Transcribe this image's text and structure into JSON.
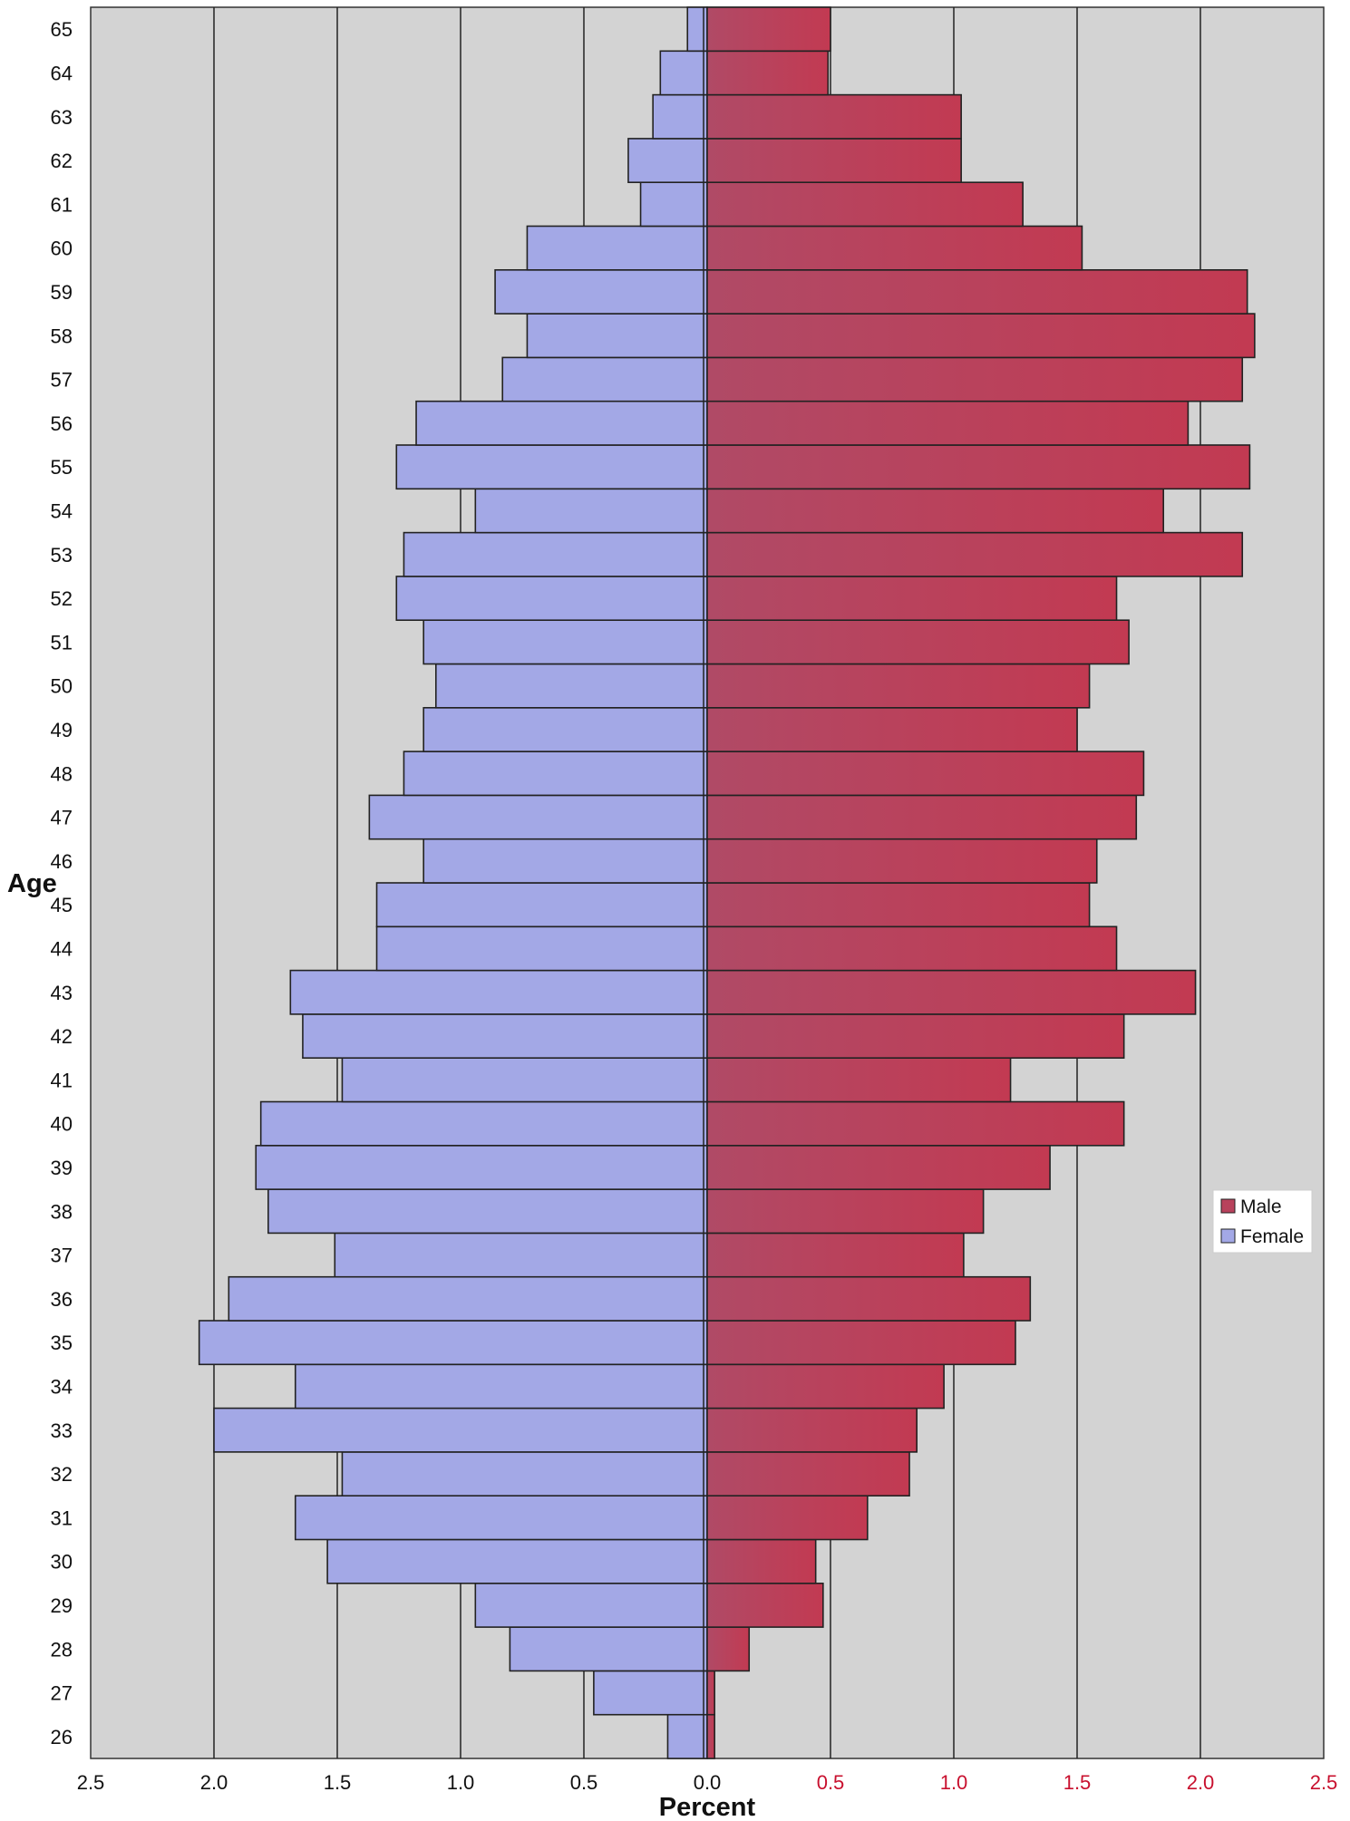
{
  "chart_data": {
    "type": "bar",
    "orientation": "horizontal-population-pyramid",
    "title": "",
    "xlabel": "Percent",
    "ylabel": "Age",
    "xlim": [
      -2.5,
      2.5
    ],
    "x_ticks": [
      "2.5",
      "2.0",
      "1.5",
      "1.0",
      "0.5",
      "0.0",
      "0.5",
      "1.0",
      "1.5",
      "2.0",
      "2.5"
    ],
    "categories": [
      "26",
      "27",
      "28",
      "29",
      "30",
      "31",
      "32",
      "33",
      "34",
      "35",
      "36",
      "37",
      "38",
      "39",
      "40",
      "41",
      "42",
      "43",
      "44",
      "45",
      "46",
      "47",
      "48",
      "49",
      "50",
      "51",
      "52",
      "53",
      "54",
      "55",
      "56",
      "57",
      "58",
      "59",
      "60",
      "61",
      "62",
      "63",
      "64",
      "65"
    ],
    "series": [
      {
        "name": "Male",
        "color": "#b8425c",
        "values": [
          0.03,
          0.03,
          0.17,
          0.47,
          0.44,
          0.65,
          0.82,
          0.85,
          0.96,
          1.25,
          1.31,
          1.04,
          1.12,
          1.39,
          1.69,
          1.23,
          1.69,
          1.98,
          1.66,
          1.55,
          1.58,
          1.74,
          1.77,
          1.5,
          1.55,
          1.71,
          1.66,
          2.17,
          1.85,
          2.2,
          1.95,
          2.17,
          2.22,
          2.19,
          1.52,
          1.28,
          1.03,
          1.03,
          0.49,
          0.5
        ]
      },
      {
        "name": "Female",
        "color": "#a3a8e6",
        "values": [
          0.16,
          0.46,
          0.8,
          0.94,
          1.54,
          1.67,
          1.48,
          2.0,
          1.67,
          2.06,
          1.94,
          1.51,
          1.78,
          1.83,
          1.81,
          1.48,
          1.64,
          1.69,
          1.34,
          1.34,
          1.15,
          1.37,
          1.23,
          1.15,
          1.1,
          1.15,
          1.26,
          1.23,
          0.94,
          1.26,
          1.18,
          0.83,
          0.73,
          0.86,
          0.73,
          0.27,
          0.32,
          0.22,
          0.19,
          0.08
        ]
      }
    ],
    "grid": true,
    "legend_position": "right"
  }
}
